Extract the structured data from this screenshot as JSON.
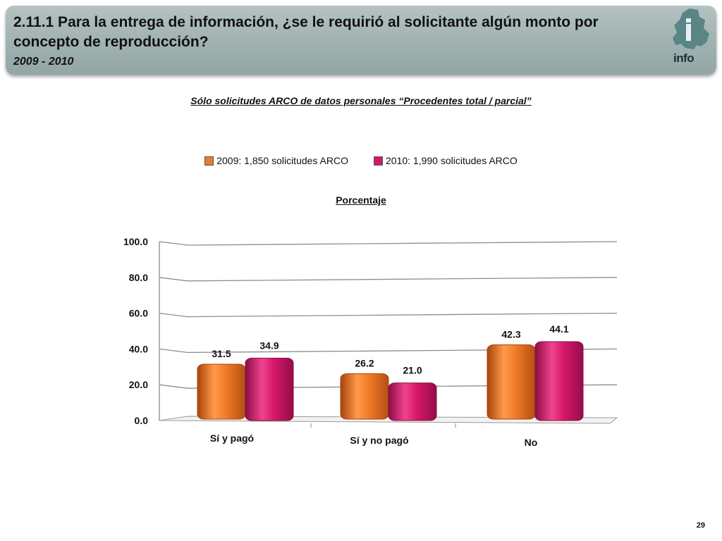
{
  "header": {
    "title": "2.11.1 Para la entrega de información, ¿se le requirió al solicitante algún monto por concepto de reproducción?",
    "years": "2009 - 2010",
    "logo_text": "info"
  },
  "subtitle": "Sólo solicitudes ARCO de datos personales “Procedentes total / parcial”",
  "unit_label": "Porcentaje",
  "page_number": "29",
  "colors": {
    "series_2009": "#f07a26",
    "series_2010": "#d4176a",
    "banner": "#9fb1b0",
    "logo": "#5a8586"
  },
  "chart_data": {
    "type": "bar",
    "categories": [
      "Sí y pagó",
      "Sí y no pagó",
      "No"
    ],
    "series": [
      {
        "name": "2009: 1,850 solicitudes ARCO",
        "values": [
          31.5,
          26.2,
          42.3
        ]
      },
      {
        "name": "2010: 1,990 solicitudes ARCO",
        "values": [
          34.9,
          21.0,
          44.1
        ]
      }
    ],
    "ylim": [
      0,
      100
    ],
    "yticks": [
      "0.0",
      "20.0",
      "40.0",
      "60.0",
      "80.0",
      "100.0"
    ],
    "data_labels": [
      [
        "31.5",
        "26.2",
        "42.3"
      ],
      [
        "34.9",
        "21.0",
        "44.1"
      ]
    ],
    "grid": true,
    "legend_position": "top-center",
    "ylabel": "Porcentaje"
  }
}
